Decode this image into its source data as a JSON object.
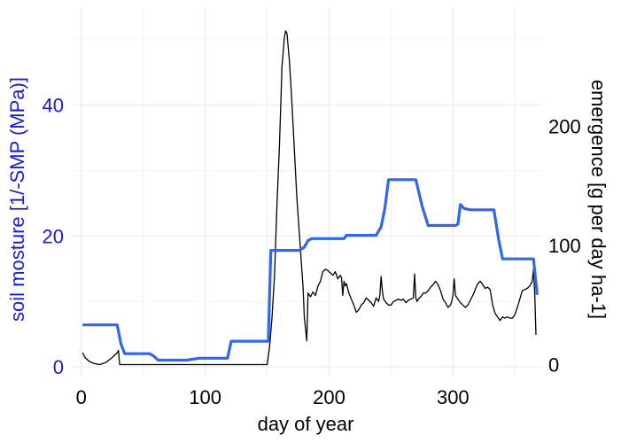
{
  "chart_data": {
    "type": "line",
    "xlabel": "day of year",
    "ylabel_left": "soil mosture [1/-SMP (MPa)]",
    "ylabel_right": "emergence [g per day ha-1]",
    "xlim": [
      -7,
      372
    ],
    "ylim_left": [
      -1.5,
      55
    ],
    "ylim_right": [
      -10,
      300
    ],
    "x_ticks": [
      0,
      100,
      200,
      300
    ],
    "y_left_ticks": [
      0,
      20,
      40
    ],
    "y_right_ticks": [
      0,
      100,
      200
    ],
    "grid": true,
    "colors": {
      "soil_moisture": "#3366ee",
      "emergence": "#000000",
      "left_axis_text": "#1a1ad8",
      "right_axis_text": "#000000",
      "grid": "#ebebeb"
    },
    "series": [
      {
        "axis": "left",
        "x": [
          1,
          29,
          32,
          35,
          55,
          58,
          62,
          85,
          95,
          118,
          121,
          151,
          153,
          176,
          180,
          183,
          186,
          212,
          214,
          238,
          242,
          245,
          248,
          270,
          275,
          280,
          302,
          304,
          306,
          309,
          314,
          333,
          337,
          340,
          344,
          365,
          368
        ],
        "y": [
          6.4,
          6.4,
          3.5,
          2.0,
          2.0,
          1.7,
          1.0,
          1.0,
          1.3,
          1.3,
          3.9,
          3.9,
          17.8,
          17.8,
          18.3,
          19.3,
          19.6,
          19.6,
          20.1,
          20.1,
          21.4,
          24.2,
          28.6,
          28.6,
          24.6,
          21.6,
          21.6,
          21.8,
          24.8,
          24.2,
          24.0,
          24.0,
          19.3,
          16.5,
          16.5,
          16.5,
          11.0
        ]
      },
      {
        "axis": "right",
        "x": [
          1,
          3,
          6,
          10,
          15,
          20,
          25,
          29,
          30,
          31,
          40,
          60,
          100,
          150,
          152,
          154,
          156,
          158,
          160,
          162,
          164,
          165,
          166,
          168,
          170,
          172,
          174,
          176,
          178,
          179,
          180,
          181,
          182,
          183,
          185,
          187,
          189,
          191,
          193,
          195,
          197,
          199,
          201,
          203,
          205,
          207,
          209,
          210,
          211,
          212,
          213,
          214,
          216,
          218,
          220,
          222,
          224,
          226,
          228,
          230,
          232,
          234,
          236,
          238,
          240,
          241,
          242,
          243,
          244,
          246,
          248,
          250,
          252,
          254,
          256,
          258,
          260,
          262,
          264,
          266,
          268,
          269,
          270,
          271,
          272,
          274,
          276,
          278,
          280,
          282,
          284,
          286,
          288,
          290,
          292,
          294,
          296,
          298,
          299,
          300,
          301,
          302,
          304,
          306,
          308,
          310,
          312,
          314,
          316,
          318,
          320,
          322,
          324,
          326,
          328,
          330,
          332,
          334,
          336,
          338,
          340,
          342,
          344,
          346,
          348,
          350,
          352,
          354,
          356,
          358,
          360,
          362,
          364,
          365,
          366,
          367
        ],
        "y": [
          10,
          6,
          3,
          1,
          0,
          2,
          6,
          10,
          12,
          0,
          0,
          0,
          0,
          0,
          15,
          40,
          75,
          135,
          185,
          250,
          275,
          280,
          278,
          255,
          220,
          180,
          140,
          110,
          80,
          65,
          40,
          30,
          20,
          60,
          57,
          61,
          58,
          66,
          70,
          78,
          80,
          79,
          77,
          75,
          78,
          72,
          75,
          73,
          58,
          70,
          66,
          68,
          60,
          55,
          50,
          44,
          46,
          50,
          52,
          56,
          54,
          52,
          49,
          56,
          53,
          58,
          74,
          62,
          55,
          52,
          50,
          50,
          53,
          54,
          55,
          54,
          55,
          52,
          54,
          55,
          56,
          76,
          56,
          53,
          55,
          57,
          60,
          60,
          62,
          65,
          67,
          70,
          67,
          62,
          55,
          52,
          48,
          50,
          53,
          58,
          72,
          58,
          55,
          52,
          50,
          48,
          50,
          54,
          58,
          63,
          68,
          70,
          67,
          64,
          65,
          63,
          50,
          43,
          40,
          37,
          40,
          39,
          40,
          39,
          39,
          42,
          48,
          55,
          62,
          63,
          64,
          66,
          70,
          80,
          60,
          25
        ]
      }
    ]
  }
}
